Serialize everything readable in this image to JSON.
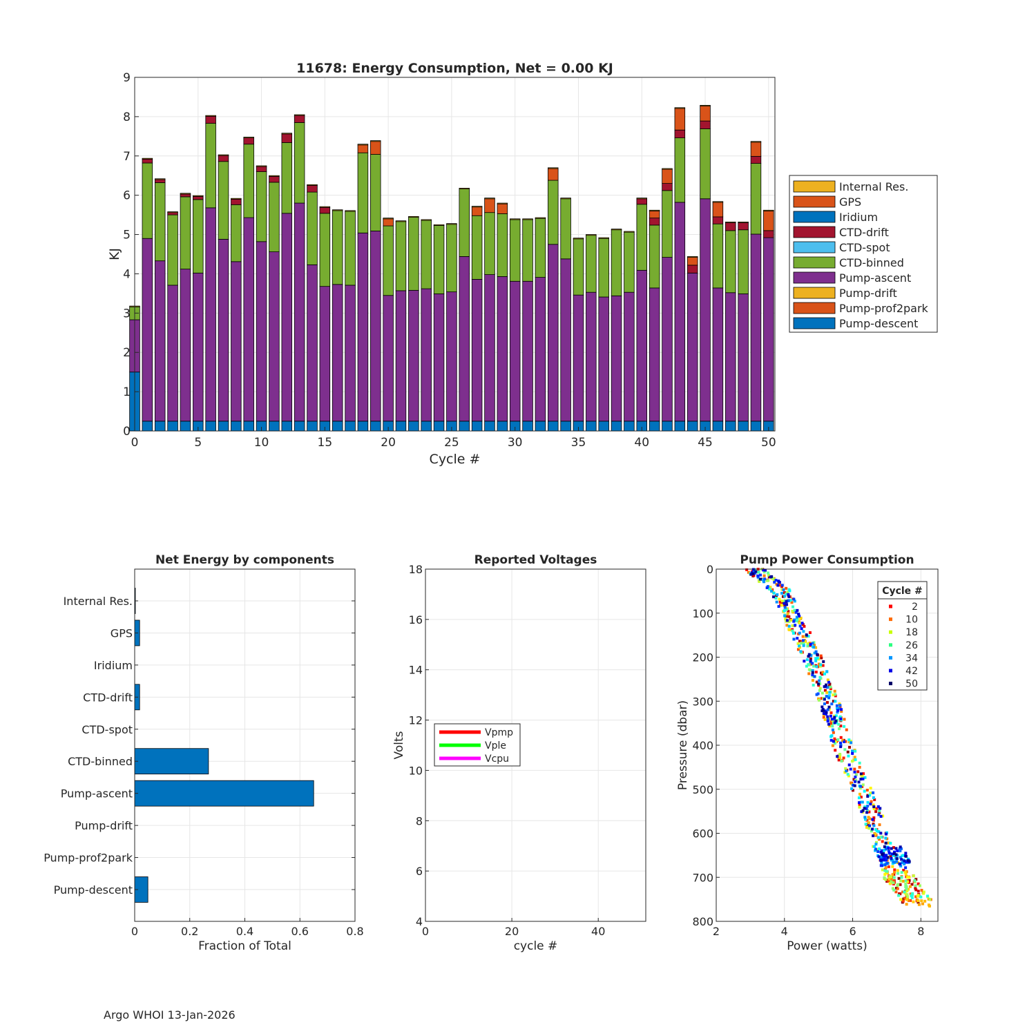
{
  "footer": "Argo WHOI 13-Jan-2026",
  "colors": {
    "internal_res": "#EDB120",
    "gps": "#D95319",
    "iridium": "#0072BD",
    "ctd_drift": "#A2142F",
    "ctd_spot": "#4DBEEE",
    "ctd_binned": "#77AC30",
    "pump_ascent": "#7E2F8E",
    "pump_drift": "#EDB120",
    "pump_prof2park": "#D95319",
    "pump_descent": "#0072BD",
    "axes": "#262626",
    "grid": "#e6e6e6"
  },
  "chart_data": [
    {
      "id": "energy",
      "type": "bar",
      "stacked": true,
      "title": "11678: Energy Consumption,  Net =   0.00 KJ",
      "xlabel": "Cycle #",
      "ylabel": "KJ",
      "xlim": [
        0,
        50.5
      ],
      "ylim": [
        0,
        9
      ],
      "xticks": [
        0,
        5,
        10,
        15,
        20,
        25,
        30,
        35,
        40,
        45,
        50
      ],
      "yticks": [
        0,
        1,
        2,
        3,
        4,
        5,
        6,
        7,
        8,
        9
      ],
      "legend_position": "outside-right",
      "legend": [
        "Internal Res.",
        "GPS",
        "Iridium",
        "CTD-drift",
        "CTD-spot",
        "CTD-binned",
        "Pump-ascent",
        "Pump-drift",
        "Pump-prof2park",
        "Pump-descent"
      ],
      "cycles": [
        0,
        1,
        2,
        3,
        4,
        5,
        6,
        7,
        8,
        9,
        10,
        11,
        12,
        13,
        14,
        15,
        16,
        17,
        18,
        19,
        20,
        21,
        22,
        23,
        24,
        25,
        26,
        27,
        28,
        29,
        30,
        31,
        32,
        33,
        34,
        35,
        36,
        37,
        38,
        39,
        40,
        41,
        42,
        43,
        44,
        45,
        46,
        47,
        48,
        49,
        50
      ],
      "series": [
        {
          "name": "Pump-descent",
          "color_key": "pump_descent",
          "values": [
            1.5,
            0.25,
            0.25,
            0.25,
            0.25,
            0.25,
            0.25,
            0.25,
            0.25,
            0.25,
            0.25,
            0.25,
            0.25,
            0.25,
            0.25,
            0.25,
            0.25,
            0.25,
            0.25,
            0.25,
            0.25,
            0.25,
            0.25,
            0.25,
            0.25,
            0.25,
            0.25,
            0.25,
            0.25,
            0.25,
            0.25,
            0.25,
            0.25,
            0.25,
            0.25,
            0.25,
            0.25,
            0.25,
            0.25,
            0.25,
            0.25,
            0.25,
            0.25,
            0.25,
            0.25,
            0.25,
            0.25,
            0.25,
            0.25,
            0.25,
            0.25
          ]
        },
        {
          "name": "Pump-prof2park",
          "color_key": "pump_prof2park",
          "values": [
            0,
            0,
            0,
            0,
            0,
            0,
            0,
            0,
            0,
            0,
            0,
            0,
            0,
            0,
            0,
            0,
            0,
            0,
            0,
            0,
            0,
            0,
            0,
            0,
            0,
            0,
            0,
            0,
            0,
            0,
            0,
            0,
            0,
            0,
            0,
            0,
            0,
            0,
            0,
            0,
            0,
            0,
            0,
            0,
            0,
            0,
            0,
            0,
            0,
            0,
            0
          ]
        },
        {
          "name": "Pump-drift",
          "color_key": "pump_drift",
          "values": [
            0,
            0,
            0,
            0,
            0,
            0,
            0,
            0,
            0,
            0,
            0,
            0,
            0,
            0,
            0,
            0,
            0,
            0,
            0,
            0,
            0,
            0,
            0,
            0,
            0,
            0,
            0,
            0,
            0,
            0,
            0,
            0,
            0,
            0,
            0,
            0,
            0,
            0,
            0,
            0,
            0,
            0,
            0,
            0,
            0,
            0,
            0,
            0,
            0,
            0,
            0
          ]
        },
        {
          "name": "Pump-ascent",
          "color_key": "pump_ascent",
          "values": [
            1.33,
            4.65,
            4.08,
            3.46,
            3.87,
            3.77,
            5.43,
            4.63,
            4.06,
            5.18,
            4.57,
            4.31,
            5.29,
            5.55,
            3.98,
            3.43,
            3.48,
            3.46,
            4.79,
            4.84,
            3.2,
            3.32,
            3.33,
            3.37,
            3.24,
            3.29,
            4.19,
            3.61,
            3.73,
            3.68,
            3.56,
            3.56,
            3.66,
            4.5,
            4.13,
            3.21,
            3.28,
            3.16,
            3.19,
            3.28,
            3.84,
            3.39,
            4.17,
            5.57,
            3.77,
            5.66,
            3.39,
            3.27,
            3.24,
            4.76,
            4.67
          ]
        },
        {
          "name": "CTD-binned",
          "color_key": "ctd_binned",
          "values": [
            0.33,
            1.92,
            1.99,
            1.79,
            1.84,
            1.87,
            2.15,
            1.98,
            1.45,
            1.87,
            1.78,
            1.77,
            1.8,
            2.05,
            1.85,
            1.86,
            1.88,
            1.88,
            2.04,
            1.95,
            1.77,
            1.76,
            1.86,
            1.74,
            1.74,
            1.72,
            1.72,
            1.62,
            1.58,
            1.6,
            1.57,
            1.57,
            1.5,
            1.63,
            1.53,
            1.43,
            1.45,
            1.49,
            1.68,
            1.53,
            1.68,
            1.6,
            1.7,
            1.64,
            0,
            1.78,
            1.63,
            1.58,
            1.63,
            1.8,
            0
          ]
        },
        {
          "name": "CTD-spot",
          "color_key": "ctd_spot",
          "values": [
            0,
            0,
            0,
            0,
            0,
            0,
            0,
            0,
            0,
            0,
            0,
            0,
            0,
            0,
            0,
            0,
            0,
            0,
            0,
            0,
            0,
            0,
            0,
            0,
            0,
            0,
            0,
            0,
            0,
            0,
            0,
            0,
            0,
            0,
            0,
            0,
            0,
            0,
            0,
            0,
            0,
            0,
            0,
            0,
            0,
            0,
            0,
            0,
            0,
            0,
            0
          ]
        },
        {
          "name": "CTD-drift",
          "color_key": "ctd_drift",
          "values": [
            0,
            0.1,
            0.08,
            0.06,
            0.07,
            0.08,
            0.18,
            0.15,
            0.14,
            0.16,
            0.13,
            0.15,
            0.22,
            0.18,
            0.17,
            0.15,
            0,
            0,
            0,
            0,
            0,
            0,
            0,
            0,
            0,
            0,
            0,
            0,
            0,
            0,
            0,
            0,
            0,
            0,
            0,
            0,
            0,
            0,
            0,
            0,
            0.14,
            0.18,
            0.18,
            0.2,
            0.2,
            0.2,
            0.18,
            0.2,
            0.18,
            0.18,
            0.18
          ]
        },
        {
          "name": "Iridium",
          "color_key": "iridium",
          "values": [
            0,
            0,
            0,
            0,
            0,
            0,
            0,
            0,
            0,
            0,
            0,
            0,
            0,
            0,
            0,
            0,
            0,
            0,
            0,
            0,
            0,
            0,
            0,
            0,
            0,
            0,
            0,
            0,
            0,
            0,
            0,
            0,
            0,
            0,
            0,
            0,
            0,
            0,
            0,
            0,
            0,
            0,
            0,
            0,
            0,
            0,
            0,
            0,
            0,
            0,
            0
          ]
        },
        {
          "name": "GPS",
          "color_key": "gps",
          "values": [
            0,
            0,
            0,
            0,
            0,
            0,
            0,
            0,
            0,
            0,
            0,
            0,
            0,
            0,
            0,
            0,
            0,
            0,
            0.2,
            0.33,
            0.18,
            0,
            0,
            0,
            0,
            0,
            0,
            0.22,
            0.35,
            0.25,
            0,
            0,
            0,
            0.3,
            0,
            0,
            0,
            0,
            0,
            0,
            0,
            0.18,
            0.36,
            0.55,
            0.2,
            0.38,
            0.37,
            0,
            0,
            0.36,
            0.5
          ]
        },
        {
          "name": "Internal Res.",
          "color_key": "internal_res",
          "values": [
            0.02,
            0.02,
            0.02,
            0.02,
            0.02,
            0.02,
            0.02,
            0.02,
            0.02,
            0.02,
            0.02,
            0.02,
            0.02,
            0.02,
            0.02,
            0.02,
            0.02,
            0.02,
            0.02,
            0.02,
            0.02,
            0.02,
            0.02,
            0.02,
            0.02,
            0.02,
            0.02,
            0.02,
            0.02,
            0.02,
            0.02,
            0.02,
            0.02,
            0.02,
            0.02,
            0.02,
            0.02,
            0.02,
            0.02,
            0.02,
            0.02,
            0.02,
            0.02,
            0.02,
            0.02,
            0.02,
            0.02,
            0.02,
            0.02,
            0.02,
            0.02
          ]
        }
      ]
    },
    {
      "id": "components",
      "type": "bar",
      "orientation": "horizontal",
      "title": "Net Energy by components",
      "xlabel": "Fraction of Total",
      "ylabel": "",
      "xlim": [
        0,
        0.8
      ],
      "xticks": [
        0,
        0.2,
        0.4,
        0.6,
        0.8
      ],
      "xtick_labels": [
        "0",
        "0.2",
        "0.4",
        "0.6",
        "0.8"
      ],
      "categories": [
        "Internal Res.",
        "GPS",
        "Iridium",
        "CTD-drift",
        "CTD-spot",
        "CTD-binned",
        "Pump-ascent",
        "Pump-drift",
        "Pump-prof2park",
        "Pump-descent"
      ],
      "values": [
        0.002,
        0.018,
        0,
        0.018,
        0,
        0.268,
        0.65,
        0,
        0,
        0.048
      ],
      "color_key": "iridium"
    },
    {
      "id": "voltages",
      "type": "line",
      "title": "Reported Voltages",
      "xlabel": "cycle #",
      "ylabel": "Volts",
      "xlim": [
        0,
        51
      ],
      "ylim": [
        4,
        18
      ],
      "xticks": [
        0,
        20,
        40
      ],
      "yticks": [
        4,
        6,
        8,
        10,
        12,
        14,
        16,
        18
      ],
      "legend_position": "left-middle",
      "series": [
        {
          "name": "Vpmp",
          "color": "#FF0000",
          "values": []
        },
        {
          "name": "Vple",
          "color": "#00FF00",
          "values": []
        },
        {
          "name": "Vcpu",
          "color": "#FF00FF",
          "values": []
        }
      ]
    },
    {
      "id": "pump_power",
      "type": "scatter",
      "title": "Pump Power Consumption",
      "xlabel": "Power (watts)",
      "ylabel": "Pressure (dbar)",
      "xlim": [
        2,
        8.5
      ],
      "ylim": [
        0,
        800
      ],
      "y_reversed": true,
      "xticks": [
        2,
        4,
        6,
        8
      ],
      "yticks": [
        0,
        100,
        200,
        300,
        400,
        500,
        600,
        700,
        800
      ],
      "legend_title": "Cycle #",
      "legend_position": "top-right",
      "legend": [
        {
          "label": "2",
          "color": "#FF0000"
        },
        {
          "label": "10",
          "color": "#FF6A00"
        },
        {
          "label": "18",
          "color": "#C8FF00"
        },
        {
          "label": "26",
          "color": "#2AFF80"
        },
        {
          "label": "34",
          "color": "#0096FF"
        },
        {
          "label": "42",
          "color": "#0000E6"
        },
        {
          "label": "50",
          "color": "#000066"
        }
      ],
      "profile_trend": [
        {
          "p": 0,
          "w": 3.1
        },
        {
          "p": 50,
          "w": 3.9
        },
        {
          "p": 100,
          "w": 4.2
        },
        {
          "p": 150,
          "w": 4.5
        },
        {
          "p": 200,
          "w": 4.8
        },
        {
          "p": 300,
          "w": 5.3
        },
        {
          "p": 400,
          "w": 5.7
        },
        {
          "p": 470,
          "w": 6.1
        },
        {
          "p": 560,
          "w": 6.6
        },
        {
          "p": 630,
          "w": 6.9
        },
        {
          "p": 700,
          "w": 7.2
        },
        {
          "p": 765,
          "w": 7.8
        }
      ]
    }
  ]
}
